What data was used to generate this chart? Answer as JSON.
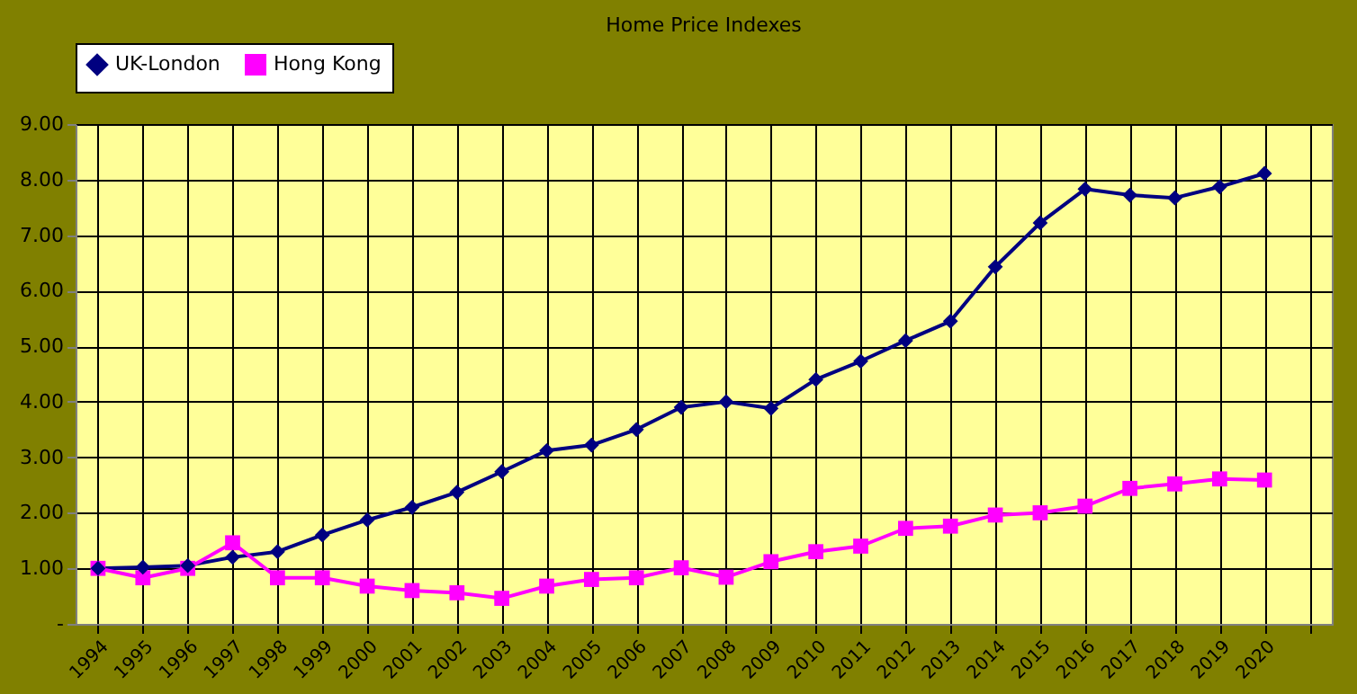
{
  "chart_data": {
    "type": "line",
    "title": "Home Price Indexes",
    "categories": [
      "1994",
      "1995",
      "1996",
      "1997",
      "1998",
      "1999",
      "2000",
      "2001",
      "2002",
      "2003",
      "2004",
      "2005",
      "2006",
      "2007",
      "2008",
      "2009",
      "2010",
      "2011",
      "2012",
      "2013",
      "2014",
      "2015",
      "2016",
      "2017",
      "2018",
      "2019",
      "2020",
      null
    ],
    "series": [
      {
        "name": "UK-London",
        "color": "#000080",
        "marker": "diamond",
        "values": [
          1.0,
          1.02,
          1.05,
          1.2,
          1.3,
          1.6,
          1.87,
          2.1,
          2.37,
          2.74,
          3.12,
          3.22,
          3.5,
          3.9,
          4.0,
          3.88,
          4.4,
          4.73,
          5.1,
          5.45,
          6.43,
          7.22,
          7.83,
          7.72,
          7.67,
          7.87,
          8.11,
          null
        ]
      },
      {
        "name": "Hong Kong",
        "color": "#ff00ff",
        "marker": "square",
        "values": [
          1.0,
          0.83,
          1.0,
          1.46,
          0.83,
          0.83,
          0.68,
          0.6,
          0.56,
          0.46,
          0.68,
          0.8,
          0.83,
          1.01,
          0.84,
          1.12,
          1.3,
          1.4,
          1.72,
          1.76,
          1.96,
          2.0,
          2.12,
          2.44,
          2.52,
          2.61,
          2.59,
          null
        ]
      }
    ],
    "ylim": [
      0,
      9
    ],
    "yticks": [
      {
        "value": 0,
        "label": "-"
      },
      {
        "value": 1,
        "label": "1.00"
      },
      {
        "value": 2,
        "label": "2.00"
      },
      {
        "value": 3,
        "label": "3.00"
      },
      {
        "value": 4,
        "label": "4.00"
      },
      {
        "value": 5,
        "label": "5.00"
      },
      {
        "value": 6,
        "label": "6.00"
      },
      {
        "value": 7,
        "label": "7.00"
      },
      {
        "value": 8,
        "label": "8.00"
      },
      {
        "value": 9,
        "label": "9.00"
      }
    ],
    "grid": true,
    "legend": "top",
    "line_style": "solid"
  }
}
